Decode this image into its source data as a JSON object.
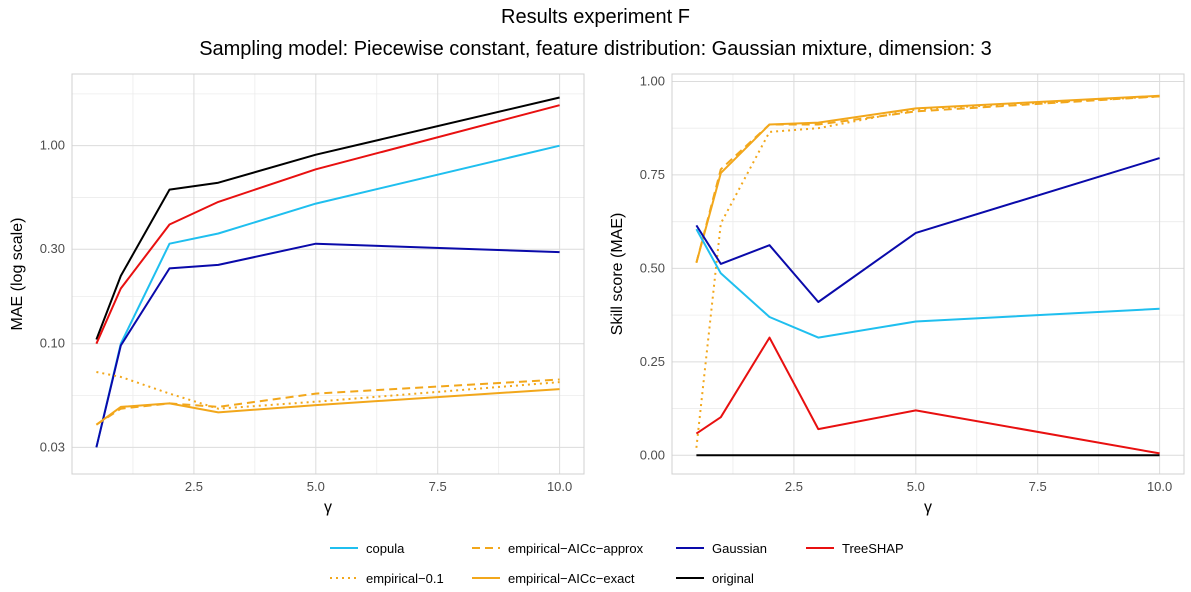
{
  "title": "Results experiment F",
  "subtitle": "Sampling model: Piecewise constant, feature distribution: Gaussian mixture, dimension: 3",
  "colors": {
    "copula": "#1fbfef",
    "empirical-0.1": "#f2a71b",
    "empirical-AICc-approx": "#f2a71b",
    "empirical-AICc-exact": "#f2a71b",
    "Gaussian": "#0a0aaa",
    "TreeSHAP": "#e81010",
    "original": "#000000"
  },
  "legend": [
    {
      "label": "copula",
      "key": "copula",
      "dash": "solid"
    },
    {
      "label": "empirical−0.1",
      "key": "empirical-0.1",
      "dash": "dotted"
    },
    {
      "label": "empirical−AICc−approx",
      "key": "empirical-AICc-approx",
      "dash": "dashed"
    },
    {
      "label": "empirical−AICc−exact",
      "key": "empirical-AICc-exact",
      "dash": "solid"
    },
    {
      "label": "Gaussian",
      "key": "Gaussian",
      "dash": "solid"
    },
    {
      "label": "original",
      "key": "original",
      "dash": "solid"
    },
    {
      "label": "TreeSHAP",
      "key": "TreeSHAP",
      "dash": "solid"
    }
  ],
  "chart_data": [
    {
      "type": "line",
      "xlabel": "γ",
      "ylabel": "MAE (log scale)",
      "yscale": "log",
      "xlim": [
        0.0,
        10.5
      ],
      "ylim": [
        0.022,
        2.3
      ],
      "xticks": [
        2.5,
        5.0,
        7.5,
        10.0
      ],
      "xtick_labels": [
        "2.5",
        "5.0",
        "7.5",
        "10.0"
      ],
      "yticks": [
        0.03,
        0.1,
        0.3,
        1.0
      ],
      "ytick_labels": [
        "0.03",
        "0.10",
        "0.30",
        "1.00"
      ],
      "x": [
        0.5,
        1,
        2,
        3,
        5,
        10
      ],
      "series": [
        {
          "name": "original",
          "key": "original",
          "dash": "solid",
          "values": [
            0.105,
            0.22,
            0.6,
            0.65,
            0.9,
            1.75
          ]
        },
        {
          "name": "TreeSHAP",
          "key": "TreeSHAP",
          "dash": "solid",
          "values": [
            0.1,
            0.19,
            0.4,
            0.52,
            0.76,
            1.6
          ]
        },
        {
          "name": "copula",
          "key": "copula",
          "dash": "solid",
          "values": [
            0.03,
            0.1,
            0.32,
            0.36,
            0.51,
            1.0
          ]
        },
        {
          "name": "Gaussian",
          "key": "Gaussian",
          "dash": "solid",
          "values": [
            0.03,
            0.098,
            0.24,
            0.25,
            0.32,
            0.29
          ]
        },
        {
          "name": "empirical−0.1",
          "key": "empirical-0.1",
          "dash": "dotted",
          "values": [
            0.072,
            0.068,
            0.056,
            0.047,
            0.051,
            0.064
          ]
        },
        {
          "name": "empirical−AICc−approx",
          "key": "empirical-AICc-approx",
          "dash": "dashed",
          "values": [
            0.039,
            0.047,
            0.05,
            0.048,
            0.056,
            0.066
          ]
        },
        {
          "name": "empirical−AICc−exact",
          "key": "empirical-AICc-exact",
          "dash": "solid",
          "values": [
            0.039,
            0.048,
            0.05,
            0.045,
            0.049,
            0.059
          ]
        }
      ]
    },
    {
      "type": "line",
      "xlabel": "γ",
      "ylabel": "Skill score (MAE)",
      "yscale": "linear",
      "xlim": [
        0.0,
        10.5
      ],
      "ylim": [
        -0.05,
        1.02
      ],
      "xticks": [
        2.5,
        5.0,
        7.5,
        10.0
      ],
      "xtick_labels": [
        "2.5",
        "5.0",
        "7.5",
        "10.0"
      ],
      "yticks": [
        0.0,
        0.25,
        0.5,
        0.75,
        1.0
      ],
      "ytick_labels": [
        "0.00",
        "0.25",
        "0.50",
        "0.75",
        "1.00"
      ],
      "x": [
        0.5,
        1,
        2,
        3,
        5,
        10
      ],
      "series": [
        {
          "name": "empirical−0.1",
          "key": "empirical-0.1",
          "dash": "dotted",
          "values": [
            0.02,
            0.62,
            0.865,
            0.875,
            0.925,
            0.96
          ]
        },
        {
          "name": "empirical−AICc−approx",
          "key": "empirical-AICc-approx",
          "dash": "dashed",
          "values": [
            0.515,
            0.765,
            0.885,
            0.885,
            0.92,
            0.96
          ]
        },
        {
          "name": "empirical−AICc−exact",
          "key": "empirical-AICc-exact",
          "dash": "solid",
          "values": [
            0.515,
            0.755,
            0.885,
            0.89,
            0.928,
            0.962
          ]
        },
        {
          "name": "Gaussian",
          "key": "Gaussian",
          "dash": "solid",
          "values": [
            0.615,
            0.512,
            0.562,
            0.41,
            0.595,
            0.795
          ]
        },
        {
          "name": "copula",
          "key": "copula",
          "dash": "solid",
          "values": [
            0.605,
            0.487,
            0.37,
            0.315,
            0.358,
            0.392
          ]
        },
        {
          "name": "TreeSHAP",
          "key": "TreeSHAP",
          "dash": "solid",
          "values": [
            0.058,
            0.102,
            0.315,
            0.07,
            0.12,
            0.005
          ]
        },
        {
          "name": "original",
          "key": "original",
          "dash": "solid",
          "values": [
            0.0,
            0.0,
            0.0,
            0.0,
            0.0,
            0.0
          ]
        }
      ]
    }
  ]
}
